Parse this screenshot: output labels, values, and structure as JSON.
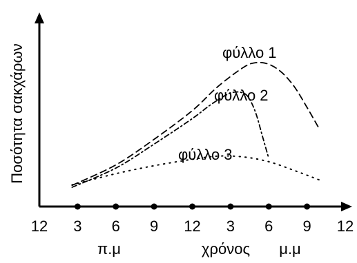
{
  "chart_data": {
    "type": "line",
    "title": "",
    "ylabel": "Ποσότητα σακχάρων",
    "xlabel": "χρόνος",
    "period_labels": [
      "π.μ",
      "μ.μ"
    ],
    "x_tick_labels": [
      "12",
      "3",
      "6",
      "9",
      "12",
      "3",
      "6",
      "9",
      "12"
    ],
    "x_hours": [
      0,
      3,
      6,
      9,
      12,
      15,
      18,
      21,
      24
    ],
    "xlim": [
      0,
      24
    ],
    "ylim": [
      0,
      10
    ],
    "grid": false,
    "legend": "none",
    "series": [
      {
        "name": "φύλλο 1",
        "style": "dashed",
        "x": [
          3,
          6,
          9,
          12,
          14,
          16,
          17,
          18,
          19,
          20,
          21,
          22
        ],
        "y": [
          0.12,
          1.4,
          3.0,
          4.8,
          6.3,
          7.5,
          7.8,
          7.7,
          7.2,
          6.3,
          5.0,
          3.6
        ]
      },
      {
        "name": "φύλλο 2",
        "style": "dashdot",
        "x": [
          3,
          6,
          9,
          12,
          13.5,
          15,
          16,
          16.5,
          17,
          17.5,
          18
        ],
        "y": [
          0.0,
          1.2,
          2.7,
          4.3,
          5.2,
          5.9,
          5.9,
          5.5,
          4.6,
          3.2,
          1.8
        ]
      },
      {
        "name": "φύλλο 3",
        "style": "dotted",
        "x": [
          3,
          6,
          9,
          12,
          14,
          16,
          18,
          20,
          22
        ],
        "y": [
          0.15,
          0.85,
          1.35,
          1.75,
          1.95,
          1.9,
          1.6,
          1.05,
          0.45
        ]
      }
    ]
  }
}
